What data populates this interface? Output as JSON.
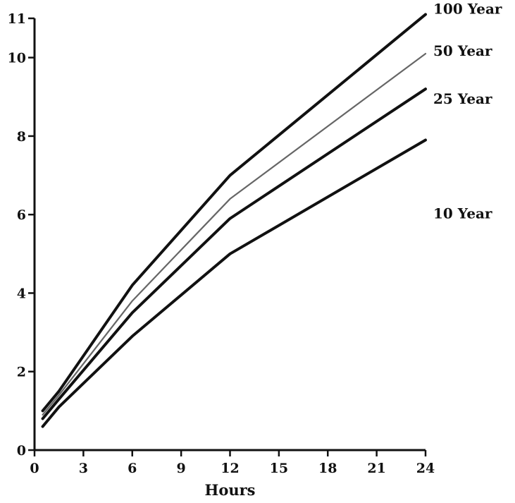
{
  "chart_data": {
    "type": "line",
    "title": "",
    "xlabel": "Hours",
    "ylabel": "",
    "xlim": [
      0,
      24
    ],
    "ylim": [
      0,
      11
    ],
    "xticks": [
      0,
      3,
      6,
      9,
      12,
      15,
      18,
      21,
      24
    ],
    "yticks": [
      0,
      2,
      4,
      6,
      8,
      10,
      11
    ],
    "grid": false,
    "legend": "inline labels at right end of each line",
    "x": [
      0.5,
      1.5,
      6,
      12,
      24
    ],
    "series": [
      {
        "name": "100 Year",
        "values": [
          1.0,
          1.5,
          4.2,
          7.0,
          11.1
        ],
        "color": "#111111"
      },
      {
        "name": "50 Year",
        "values": [
          0.9,
          1.4,
          3.8,
          6.4,
          10.1
        ],
        "color": "#666666"
      },
      {
        "name": "25 Year",
        "values": [
          0.8,
          1.3,
          3.5,
          5.9,
          9.2
        ],
        "color": "#111111"
      },
      {
        "name": "10 Year",
        "values": [
          0.6,
          1.1,
          2.9,
          5.0,
          7.9
        ],
        "color": "#111111"
      }
    ]
  }
}
